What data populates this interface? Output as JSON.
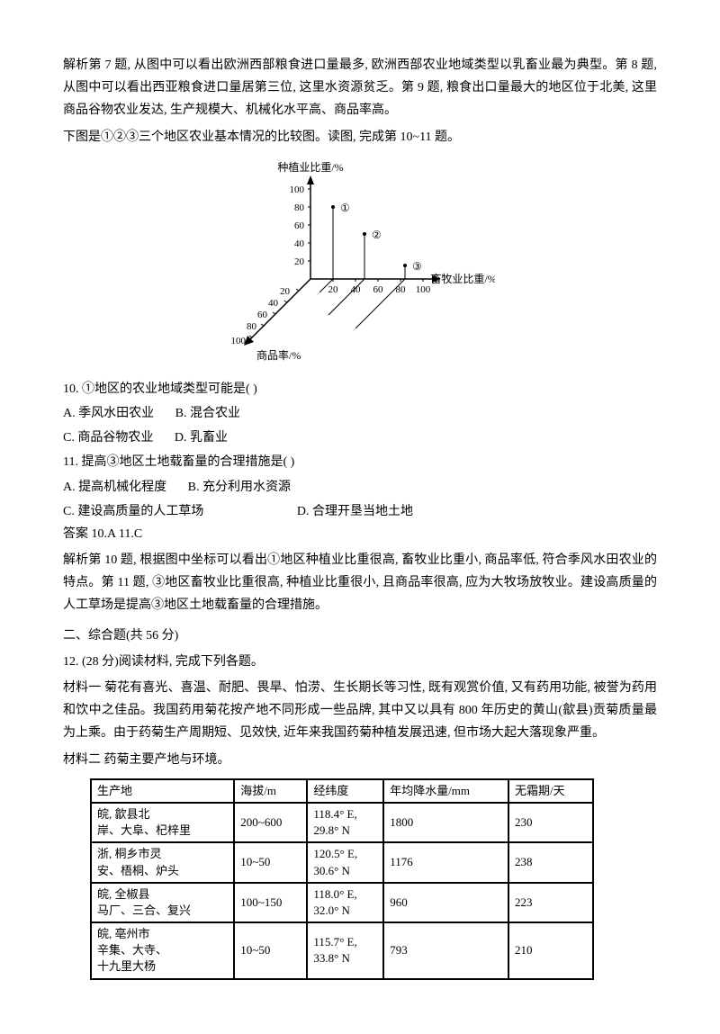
{
  "analysis": {
    "q7_9": "解析第 7 题, 从图中可以看出欧洲西部粮食进口量最多, 欧洲西部农业地域类型以乳畜业最为典型。第 8 题, 从图中可以看出西亚粮食进口量居第三位, 这里水资源贫乏。第 9 题, 粮食出口量最大的地区位于北美, 这里商品谷物农业发达, 生产规模大、机械化水平高、商品率高。"
  },
  "intro_10_11": "下图是①②③三个地区农业基本情况的比较图。读图, 完成第 10~11 题。",
  "chart": {
    "y_label": "种植业比重/%",
    "x_label": "畜牧业比重/%",
    "diag_label": "商品率/%",
    "ticks": [
      "20",
      "40",
      "60",
      "80",
      "100"
    ],
    "markers": [
      "①",
      "②",
      "③"
    ],
    "line_color": "#000",
    "bg": "#fff"
  },
  "q10": {
    "stem": "10. ①地区的农业地域类型可能是(    )",
    "a": "A. 季风水田农业",
    "b": "B. 混合农业",
    "c": "C. 商品谷物农业",
    "d": "D. 乳畜业"
  },
  "q11": {
    "stem": "11. 提高③地区土地载畜量的合理措施是(    )",
    "a": "A. 提高机械化程度",
    "b": "B. 充分利用水资源",
    "c": "C. 建设高质量的人工草场",
    "d": "D. 合理开垦当地土地"
  },
  "ans_10_11": "答案 10.A  11.C",
  "analysis_10_11": "解析第 10 题, 根据图中坐标可以看出①地区种植业比重很高, 畜牧业比重小, 商品率低, 符合季风水田农业的特点。第 11 题, ③地区畜牧业比重很高, 种植业比重很小, 且商品率很高, 应为大牧场放牧业。建设高质量的人工草场是提高③地区土地载畜量的合理措施。",
  "section2": "二、综合题(共 56 分)",
  "q12": {
    "stem": "12. (28 分)阅读材料, 完成下列各题。",
    "mat1": "材料一  菊花有喜光、喜温、耐肥、畏旱、怕涝、生长期长等习性, 既有观赏价值, 又有药用功能, 被誉为药用和饮中之佳品。我国药用菊花按产地不同形成一些品牌, 其中又以具有 800 年历史的黄山(歙县)贡菊质量最为上乘。由于药菊生产周期短、见效快, 近年来我国药菊种植发展迅速, 但市场大起大落现象严重。",
    "mat2": "材料二  药菊主要产地与环境。"
  },
  "table": {
    "headers": [
      "生产地",
      "海拔/m",
      "经纬度",
      "年均降水量/mm",
      "无霜期/天"
    ],
    "rows": [
      [
        "皖, 歙县北\n岸、大阜、杞梓里",
        "200~600",
        "118.4° E,\n29.8° N",
        "1800",
        "230"
      ],
      [
        "浙, 桐乡市灵\n安、梧桐、炉头",
        "10~50",
        "120.5° E,\n30.6° N",
        "1176",
        "238"
      ],
      [
        "皖, 全椒县\n马厂、三合、复兴",
        "100~150",
        "118.0° E,\n32.0° N",
        "960",
        "223"
      ],
      [
        "皖, 亳州市\n辛集、大寺、\n十九里大杨",
        "10~50",
        "115.7° E,\n33.8° N",
        "793",
        "210"
      ]
    ],
    "col_widths": [
      "150px",
      "90px",
      "110px",
      "90px",
      "70px"
    ]
  }
}
